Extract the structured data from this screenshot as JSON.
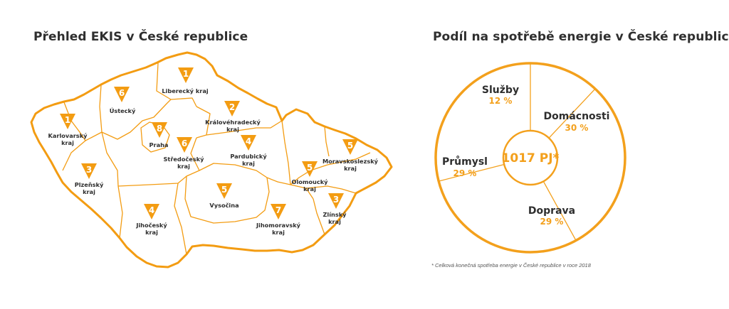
{
  "map": {
    "title": "Přehled EKIS v České republice",
    "accent_color": "#f39c12",
    "regions": [
      {
        "name": "Liberecký kraj",
        "count": "1"
      },
      {
        "name": "Ústecký",
        "count": "6"
      },
      {
        "name": "Karlovarský kraj",
        "count": "1"
      },
      {
        "name": "Královéhradecký kraj",
        "count": "2"
      },
      {
        "name": "Praha",
        "count": "8"
      },
      {
        "name": "Středočeský kraj",
        "count": "6"
      },
      {
        "name": "Pardubický kraj",
        "count": "4"
      },
      {
        "name": "Moravskoslezský kraj",
        "count": "5"
      },
      {
        "name": "Plzeňský kraj",
        "count": "3"
      },
      {
        "name": "Olomoucký kraj",
        "count": "5"
      },
      {
        "name": "Vysočina",
        "count": "5"
      },
      {
        "name": "Zlínský kraj",
        "count": "3"
      },
      {
        "name": "Jihočeský kraj",
        "count": "4"
      },
      {
        "name": "Jihomoravský kraj",
        "count": "7"
      }
    ]
  },
  "chart": {
    "title": "Podíl na spotřebě energie v České republice",
    "center_label": "1017 PJ*",
    "footnote": "* Celková konečná spotřeba energie v České republice v roce 2018",
    "accent_color": "#f3a01c"
  },
  "chart_data": {
    "type": "pie",
    "title": "Podíl na spotřebě energie v České republice",
    "total_label": "1017 PJ*",
    "categories": [
      "Služby",
      "Domácnosti",
      "Doprava",
      "Průmysl"
    ],
    "values": [
      12,
      30,
      29,
      29
    ],
    "value_labels": [
      "12 %",
      "30 %",
      "29 %",
      "29 %"
    ],
    "unit": "%"
  }
}
